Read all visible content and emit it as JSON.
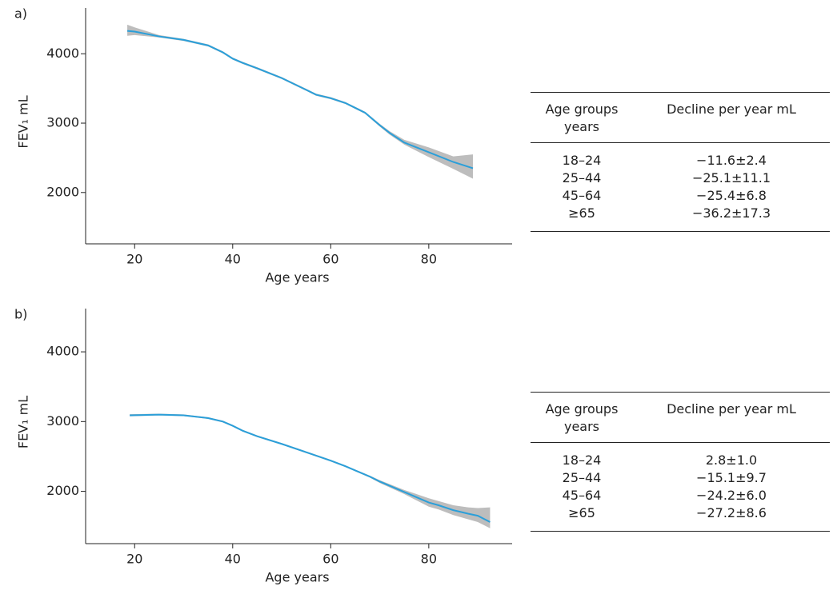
{
  "chart_data": [
    {
      "type": "line",
      "panel_label": "a)",
      "x_label": "Age years",
      "y_label": "FEV₁ mL",
      "xlim": [
        10,
        97
      ],
      "ylim": [
        1260,
        4660
      ],
      "xticks": [
        20,
        40,
        60,
        80
      ],
      "yticks": [
        2000,
        3000,
        4000
      ],
      "x": [
        18.5,
        20,
        25,
        30,
        35,
        38,
        40,
        42,
        45,
        50,
        55,
        57,
        60,
        63,
        65,
        67,
        70,
        72,
        75,
        80,
        85,
        89
      ],
      "series": [
        {
          "color": "#2b9fd9",
          "band_color": "#bdbdbd",
          "values": [
            4330,
            4320,
            4250,
            4200,
            4120,
            4020,
            3930,
            3870,
            3790,
            3650,
            3480,
            3410,
            3360,
            3290,
            3220,
            3150,
            2970,
            2860,
            2720,
            2580,
            2440,
            2350
          ],
          "lower": [
            4260,
            4270,
            4235,
            4185,
            4105,
            4005,
            3915,
            3855,
            3775,
            3635,
            3465,
            3395,
            3345,
            3275,
            3205,
            3135,
            2950,
            2835,
            2690,
            2510,
            2340,
            2200
          ],
          "upper": [
            4420,
            4380,
            4270,
            4215,
            4135,
            4035,
            3945,
            3885,
            3805,
            3665,
            3495,
            3425,
            3375,
            3305,
            3235,
            3165,
            2990,
            2885,
            2760,
            2650,
            2520,
            2550
          ]
        }
      ],
      "table": {
        "header": [
          "Age groups years",
          "Decline per year mL"
        ],
        "rows": [
          [
            "18–24",
            "−11.6±2.4"
          ],
          [
            "25–44",
            "−25.1±11.1"
          ],
          [
            "45–64",
            "−25.4±6.8"
          ],
          [
            "≥65",
            "−36.2±17.3"
          ]
        ]
      }
    },
    {
      "type": "line",
      "panel_label": "b)",
      "x_label": "Age years",
      "y_label": "FEV₁ mL",
      "xlim": [
        10,
        97
      ],
      "ylim": [
        1250,
        4620
      ],
      "xticks": [
        20,
        40,
        60,
        80
      ],
      "yticks": [
        2000,
        3000,
        4000
      ],
      "x": [
        19,
        25,
        30,
        35,
        38,
        40,
        42,
        45,
        50,
        55,
        60,
        63,
        65,
        68,
        70,
        75,
        80,
        82,
        85,
        88,
        90,
        92.5
      ],
      "series": [
        {
          "color": "#2b9fd9",
          "band_color": "#bdbdbd",
          "values": [
            3090,
            3100,
            3090,
            3050,
            3000,
            2940,
            2870,
            2790,
            2680,
            2560,
            2440,
            2360,
            2300,
            2210,
            2140,
            1990,
            1840,
            1800,
            1730,
            1680,
            1650,
            1560
          ],
          "lower": [
            3075,
            3088,
            3078,
            3038,
            2988,
            2928,
            2858,
            2778,
            2668,
            2548,
            2428,
            2348,
            2288,
            2195,
            2120,
            1960,
            1780,
            1740,
            1660,
            1600,
            1560,
            1470
          ],
          "upper": [
            3105,
            3112,
            3102,
            3062,
            3012,
            2952,
            2882,
            2802,
            2692,
            2572,
            2452,
            2372,
            2312,
            2225,
            2160,
            2020,
            1900,
            1860,
            1800,
            1770,
            1760,
            1770
          ]
        }
      ],
      "table": {
        "header": [
          "Age groups years",
          "Decline per year mL"
        ],
        "rows": [
          [
            "18–24",
            "2.8±1.0"
          ],
          [
            "25–44",
            "−15.1±9.7"
          ],
          [
            "45–64",
            "−24.2±6.0"
          ],
          [
            "≥65",
            "−27.2±8.6"
          ]
        ]
      }
    }
  ]
}
